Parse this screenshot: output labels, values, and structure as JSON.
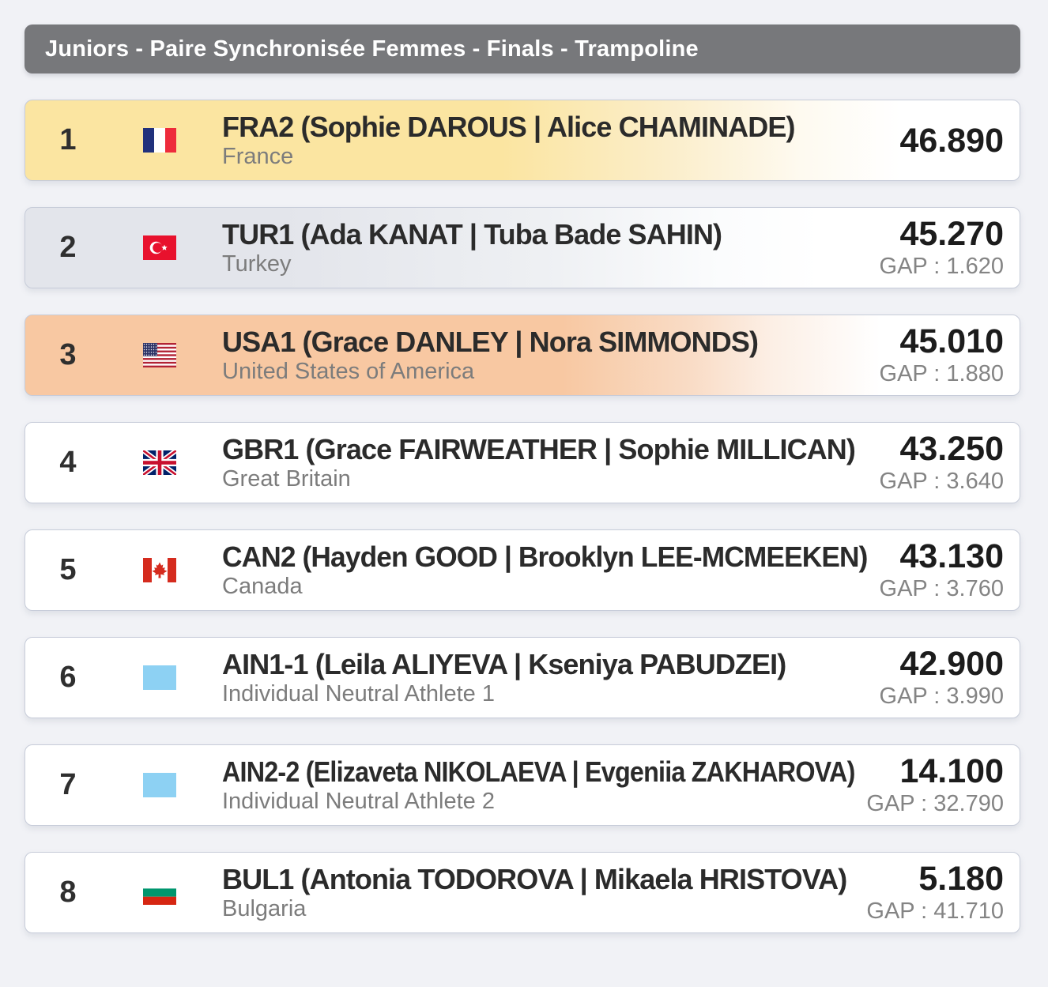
{
  "header": {
    "title": "Juniors - Paire Synchronisée Femmes - Finals - Trampoline"
  },
  "colors": {
    "gold_row": "#fbe5a1",
    "silver_row": "#e3e5eb",
    "bronze_row": "#f8c8a2",
    "header_bar": "#77787b",
    "ain_flag_blue": "#8dd1f3"
  },
  "rows": [
    {
      "rank": "1",
      "code_names": "FRA2 (Sophie DAROUS | Alice CHAMINADE)",
      "country": "France",
      "score": "46.890",
      "gap": "",
      "flag": "france",
      "medal": "gold"
    },
    {
      "rank": "2",
      "code_names": "TUR1 (Ada KANAT | Tuba Bade SAHIN)",
      "country": "Turkey",
      "score": "45.270",
      "gap": "GAP : 1.620",
      "flag": "turkey",
      "medal": "silver"
    },
    {
      "rank": "3",
      "code_names": "USA1 (Grace DANLEY | Nora SIMMONDS)",
      "country": "United States of America",
      "score": "45.010",
      "gap": "GAP : 1.880",
      "flag": "usa",
      "medal": "bronze"
    },
    {
      "rank": "4",
      "code_names": "GBR1 (Grace FAIRWEATHER | Sophie MILLICAN)",
      "country": "Great Britain",
      "score": "43.250",
      "gap": "GAP : 3.640",
      "flag": "great-britain",
      "medal": "none"
    },
    {
      "rank": "5",
      "code_names": "CAN2 (Hayden GOOD | Brooklyn LEE-MCMEEKEN)",
      "country": "Canada",
      "score": "43.130",
      "gap": "GAP : 3.760",
      "flag": "canada",
      "medal": "none"
    },
    {
      "rank": "6",
      "code_names": "AIN1-1 (Leila ALIYEVA | Kseniya PABUDZEI)",
      "country": "Individual Neutral Athlete 1",
      "score": "42.900",
      "gap": "GAP : 3.990",
      "flag": "ain",
      "medal": "none"
    },
    {
      "rank": "7",
      "code_names": "AIN2-2 (Elizaveta NIKOLAEVA | Evgeniia ZAKHAROVA)",
      "country": "Individual Neutral Athlete 2",
      "score": "14.100",
      "gap": "GAP : 32.790",
      "flag": "ain",
      "medal": "none"
    },
    {
      "rank": "8",
      "code_names": "BUL1 (Antonia TODOROVA | Mikaela HRISTOVA)",
      "country": "Bulgaria",
      "score": "5.180",
      "gap": "GAP : 41.710",
      "flag": "bulgaria",
      "medal": "none"
    }
  ]
}
